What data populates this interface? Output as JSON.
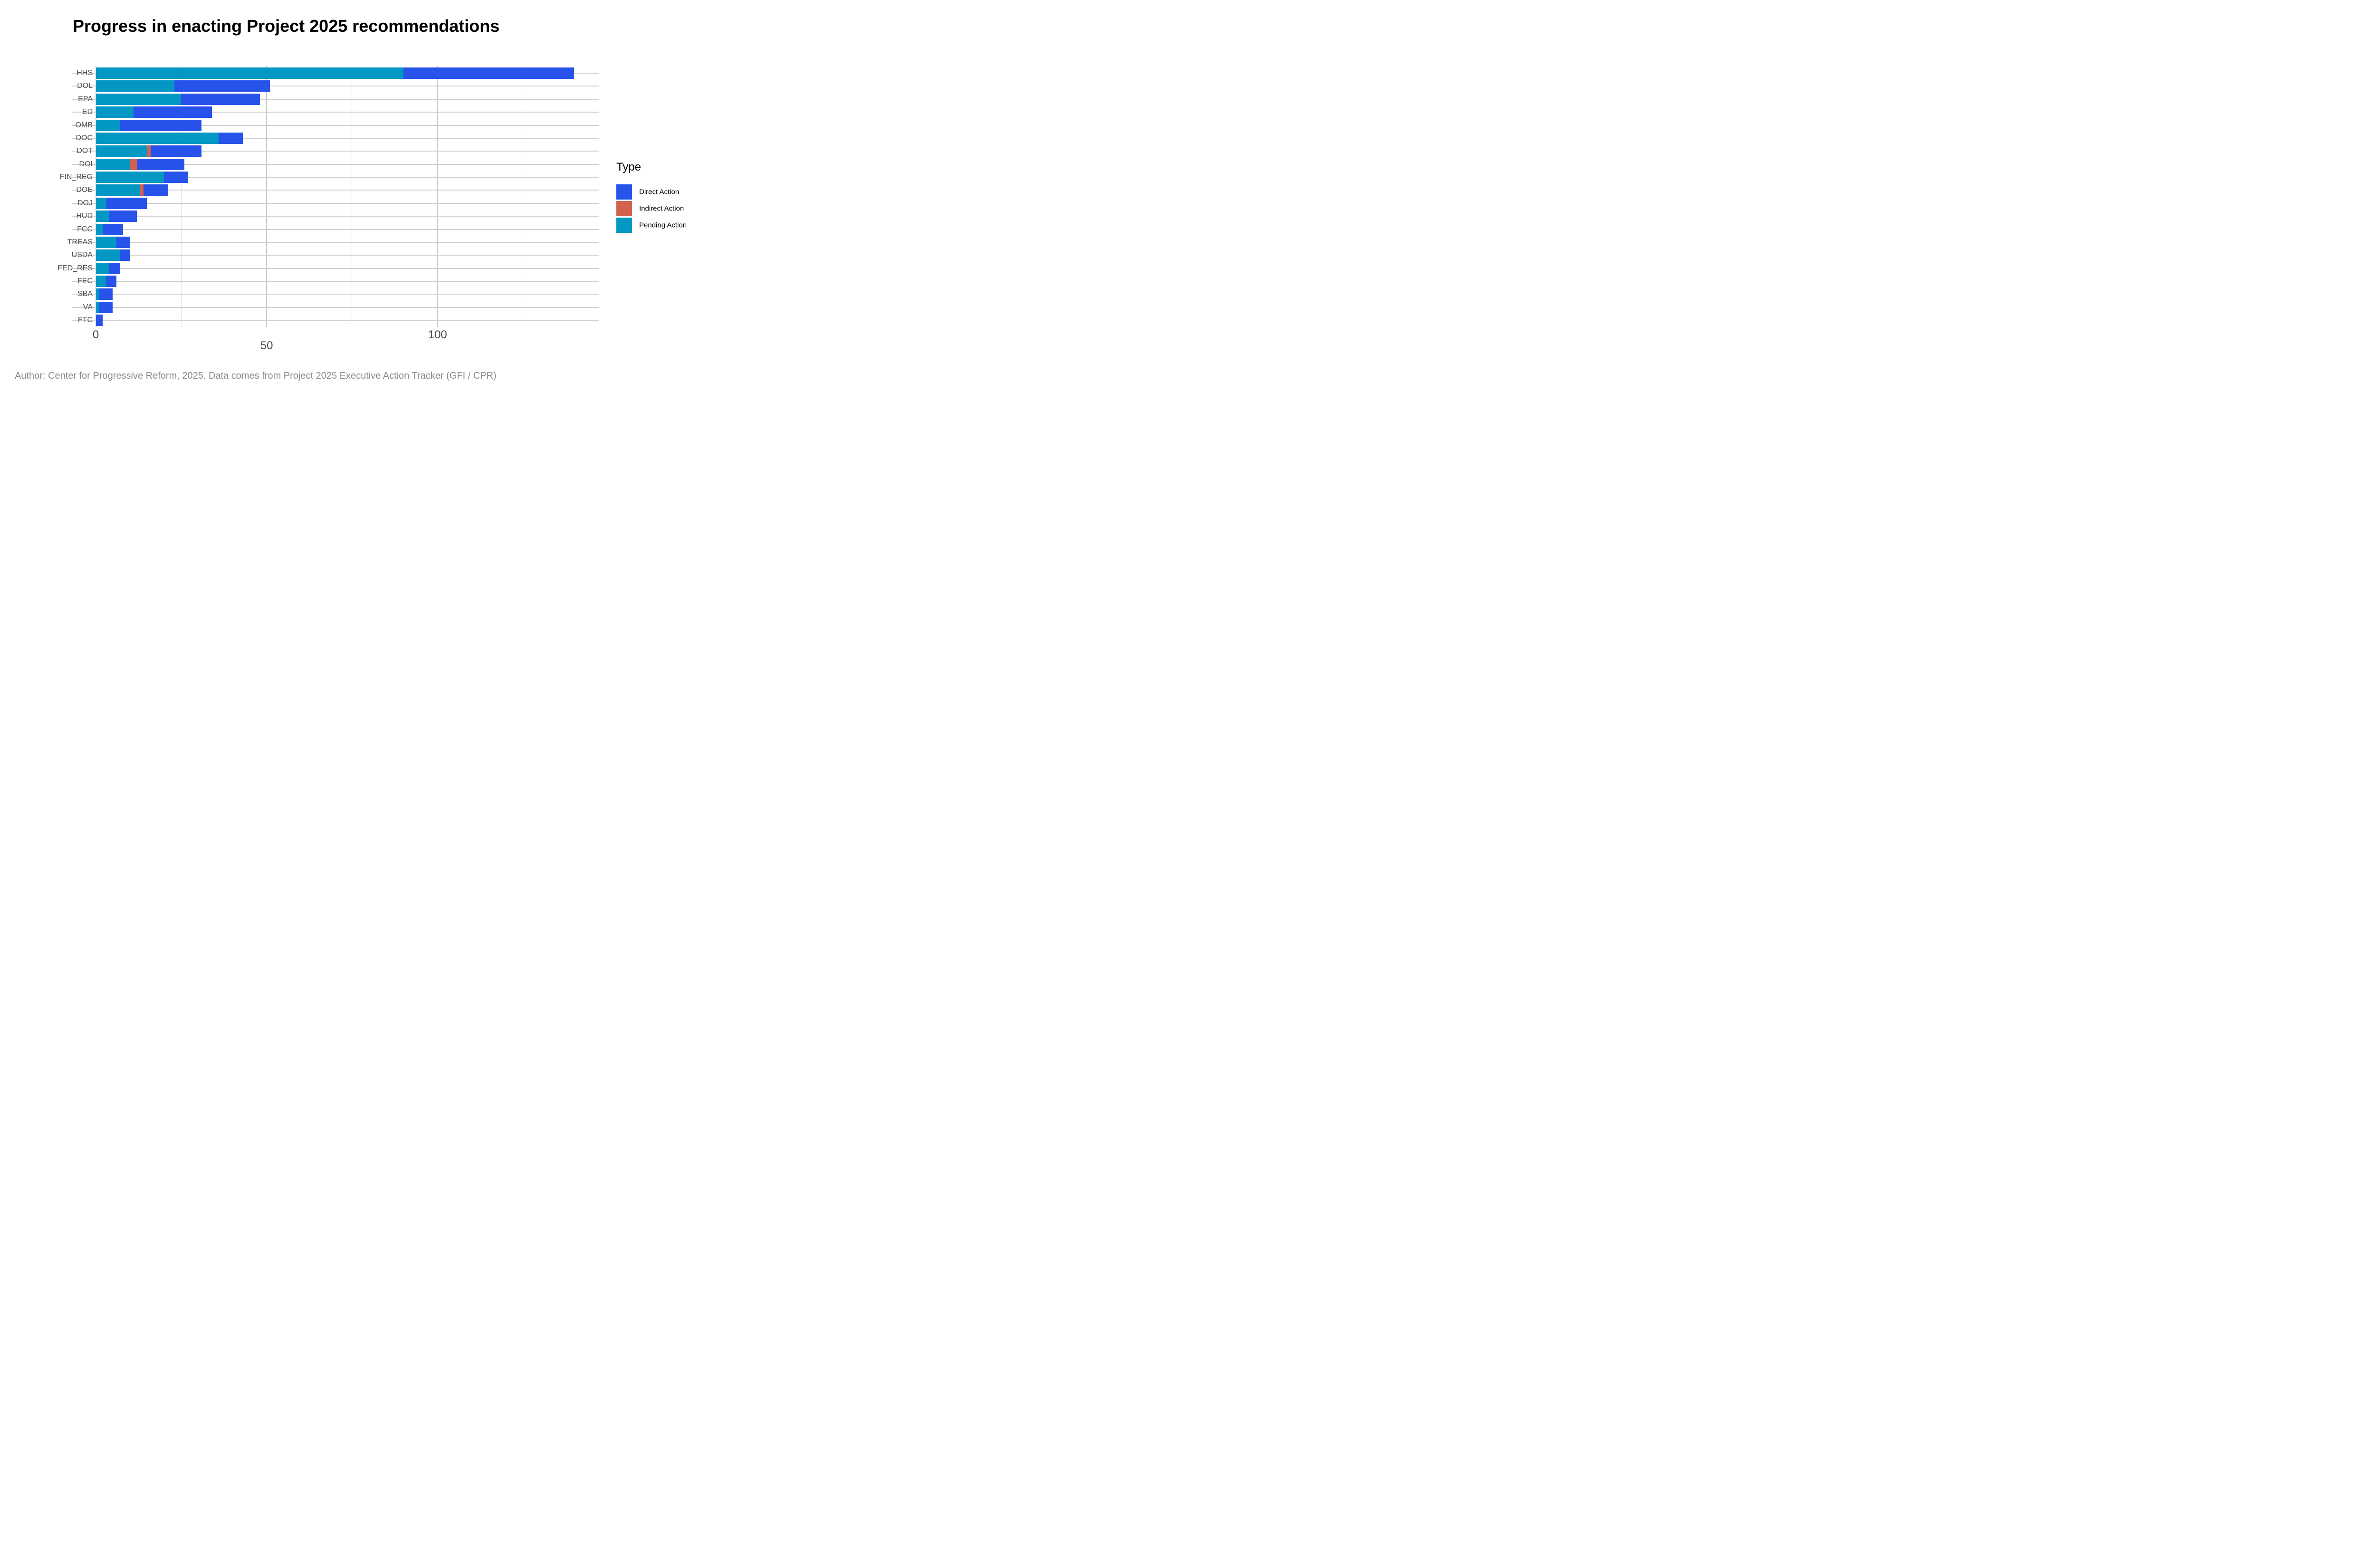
{
  "title": "Progress in enacting Project 2025 recommendations",
  "caption": "Author: Center for Progressive Reform, 2025. Data comes from Project 2025 Executive Action Tracker (GFI / CPR)",
  "legend": {
    "title": "Type",
    "items": [
      {
        "label": "Direct Action",
        "color": "#2853EB"
      },
      {
        "label": "Indirect Action",
        "color": "#D2614F"
      },
      {
        "label": "Pending Action",
        "color": "#0397C3"
      }
    ]
  },
  "x_axis": {
    "major_ticks": [
      0,
      50,
      100
    ],
    "minor_ticks": [
      25,
      75,
      125
    ],
    "tick_label_rows": {
      "first_row": [
        "0",
        "100"
      ],
      "second_row": [
        "50"
      ]
    },
    "range": [
      -7,
      147.2
    ],
    "grid": "on"
  },
  "chart_data": {
    "type": "bar",
    "orientation": "horizontal",
    "stacked": true,
    "title": "Progress in enacting Project 2025 recommendations",
    "xlabel": "",
    "ylabel": "",
    "xlim": [
      -7,
      147.2
    ],
    "legend_position": "right",
    "categories": [
      "HHS",
      "DOL",
      "EPA",
      "ED",
      "OMB",
      "DOC",
      "DOT",
      "DOI",
      "FIN_REG",
      "DOE",
      "DOJ",
      "HUD",
      "FCC",
      "TREAS",
      "USDA",
      "FED_RES",
      "FEC",
      "SBA",
      "VA",
      "FTC"
    ],
    "series": [
      {
        "name": "Pending Action",
        "color": "#0397C3",
        "values": [
          90,
          23,
          25,
          11,
          7,
          36,
          15,
          10,
          20,
          13,
          3,
          4,
          2,
          6,
          7,
          4,
          3,
          1,
          1,
          0
        ]
      },
      {
        "name": "Indirect Action",
        "color": "#D2614F",
        "values": [
          0,
          0,
          0,
          0,
          0,
          0,
          1,
          2,
          0,
          1,
          0,
          0,
          0,
          0,
          0,
          0,
          0,
          0,
          0,
          0
        ]
      },
      {
        "name": "Direct Action",
        "color": "#2853EB",
        "values": [
          50,
          28,
          23,
          23,
          24,
          7,
          15,
          14,
          7,
          7,
          12,
          8,
          6,
          4,
          3,
          3,
          3,
          4,
          4,
          2
        ]
      }
    ],
    "totals": [
      140,
      51,
      48,
      34,
      31,
      43,
      31,
      26,
      27,
      21,
      15,
      12,
      8,
      10,
      10,
      7,
      6,
      5,
      5,
      2
    ]
  }
}
